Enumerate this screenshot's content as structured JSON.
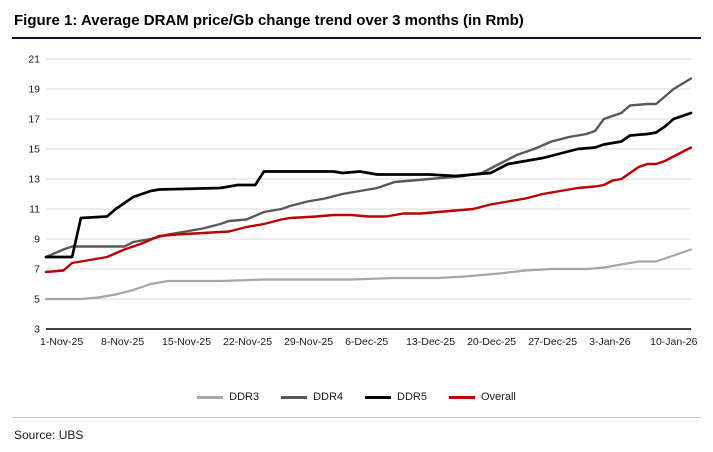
{
  "figure": {
    "title": "Figure 1: Average DRAM price/Gb change trend over 3 months (in Rmb)",
    "source": "Source: UBS"
  },
  "chart_data": {
    "type": "line",
    "title": "Average DRAM price/Gb change trend over 3 months (in Rmb)",
    "xlabel": "",
    "ylabel": "",
    "x_unit": "days since 1-Nov-25",
    "x_range": [
      0,
      74
    ],
    "x_tick_days": [
      0,
      7,
      14,
      21,
      28,
      35,
      42,
      49,
      56,
      63,
      70
    ],
    "x_tick_labels": [
      "1-Nov-25",
      "8-Nov-25",
      "15-Nov-25",
      "22-Nov-25",
      "29-Nov-25",
      "6-Dec-25",
      "13-Dec-25",
      "20-Dec-25",
      "27-Dec-25",
      "3-Jan-26",
      "10-Jan-26"
    ],
    "ylim": [
      3,
      21
    ],
    "y_ticks": [
      3,
      5,
      7,
      9,
      11,
      13,
      15,
      17,
      19,
      21
    ],
    "grid": "horizontal",
    "legend_position": "bottom-center",
    "series": [
      {
        "name": "DDR3",
        "color": "#a6a6a6",
        "points": [
          [
            0,
            5.0
          ],
          [
            4,
            5.0
          ],
          [
            6,
            5.1
          ],
          [
            8,
            5.3
          ],
          [
            10,
            5.6
          ],
          [
            12,
            6.0
          ],
          [
            14,
            6.2
          ],
          [
            20,
            6.2
          ],
          [
            25,
            6.3
          ],
          [
            30,
            6.3
          ],
          [
            35,
            6.3
          ],
          [
            40,
            6.4
          ],
          [
            45,
            6.4
          ],
          [
            48,
            6.5
          ],
          [
            52,
            6.7
          ],
          [
            55,
            6.9
          ],
          [
            58,
            7.0
          ],
          [
            62,
            7.0
          ],
          [
            64,
            7.1
          ],
          [
            66,
            7.3
          ],
          [
            68,
            7.5
          ],
          [
            70,
            7.5
          ],
          [
            72,
            7.9
          ],
          [
            74,
            8.3
          ]
        ]
      },
      {
        "name": "DDR4",
        "color": "#595959",
        "points": [
          [
            0,
            7.8
          ],
          [
            2,
            8.3
          ],
          [
            3,
            8.5
          ],
          [
            9,
            8.5
          ],
          [
            10,
            8.8
          ],
          [
            12,
            9.0
          ],
          [
            14,
            9.3
          ],
          [
            16,
            9.5
          ],
          [
            18,
            9.7
          ],
          [
            20,
            10.0
          ],
          [
            21,
            10.2
          ],
          [
            23,
            10.3
          ],
          [
            25,
            10.8
          ],
          [
            27,
            11.0
          ],
          [
            28,
            11.2
          ],
          [
            30,
            11.5
          ],
          [
            32,
            11.7
          ],
          [
            34,
            12.0
          ],
          [
            36,
            12.2
          ],
          [
            38,
            12.4
          ],
          [
            40,
            12.8
          ],
          [
            42,
            12.9
          ],
          [
            44,
            13.0
          ],
          [
            46,
            13.1
          ],
          [
            48,
            13.2
          ],
          [
            50,
            13.4
          ],
          [
            52,
            14.0
          ],
          [
            54,
            14.6
          ],
          [
            56,
            15.0
          ],
          [
            58,
            15.5
          ],
          [
            60,
            15.8
          ],
          [
            62,
            16.0
          ],
          [
            63,
            16.2
          ],
          [
            64,
            17.0
          ],
          [
            66,
            17.4
          ],
          [
            67,
            17.9
          ],
          [
            69,
            18.0
          ],
          [
            70,
            18.0
          ],
          [
            71,
            18.5
          ],
          [
            72,
            19.0
          ],
          [
            74,
            19.7
          ]
        ]
      },
      {
        "name": "DDR5",
        "color": "#000000",
        "points": [
          [
            0,
            7.8
          ],
          [
            3,
            7.8
          ],
          [
            4,
            10.4
          ],
          [
            7,
            10.5
          ],
          [
            8,
            11.0
          ],
          [
            10,
            11.8
          ],
          [
            12,
            12.2
          ],
          [
            13,
            12.3
          ],
          [
            20,
            12.4
          ],
          [
            22,
            12.6
          ],
          [
            24,
            12.6
          ],
          [
            25,
            13.5
          ],
          [
            33,
            13.5
          ],
          [
            34,
            13.4
          ],
          [
            36,
            13.5
          ],
          [
            38,
            13.3
          ],
          [
            44,
            13.3
          ],
          [
            47,
            13.2
          ],
          [
            49,
            13.3
          ],
          [
            51,
            13.4
          ],
          [
            53,
            14.0
          ],
          [
            55,
            14.2
          ],
          [
            57,
            14.4
          ],
          [
            59,
            14.7
          ],
          [
            61,
            15.0
          ],
          [
            63,
            15.1
          ],
          [
            64,
            15.3
          ],
          [
            66,
            15.5
          ],
          [
            67,
            15.9
          ],
          [
            69,
            16.0
          ],
          [
            70,
            16.1
          ],
          [
            71,
            16.5
          ],
          [
            72,
            17.0
          ],
          [
            74,
            17.4
          ]
        ]
      },
      {
        "name": "Overall",
        "color": "#c00000",
        "points": [
          [
            0,
            6.8
          ],
          [
            2,
            6.9
          ],
          [
            3,
            7.4
          ],
          [
            4,
            7.5
          ],
          [
            7,
            7.8
          ],
          [
            9,
            8.3
          ],
          [
            11,
            8.7
          ],
          [
            13,
            9.2
          ],
          [
            15,
            9.3
          ],
          [
            18,
            9.4
          ],
          [
            21,
            9.5
          ],
          [
            23,
            9.8
          ],
          [
            25,
            10.0
          ],
          [
            27,
            10.3
          ],
          [
            28,
            10.4
          ],
          [
            31,
            10.5
          ],
          [
            33,
            10.6
          ],
          [
            35,
            10.6
          ],
          [
            37,
            10.5
          ],
          [
            39,
            10.5
          ],
          [
            41,
            10.7
          ],
          [
            43,
            10.7
          ],
          [
            45,
            10.8
          ],
          [
            47,
            10.9
          ],
          [
            49,
            11.0
          ],
          [
            51,
            11.3
          ],
          [
            53,
            11.5
          ],
          [
            55,
            11.7
          ],
          [
            57,
            12.0
          ],
          [
            59,
            12.2
          ],
          [
            61,
            12.4
          ],
          [
            63,
            12.5
          ],
          [
            64,
            12.6
          ],
          [
            65,
            12.9
          ],
          [
            66,
            13.0
          ],
          [
            67,
            13.4
          ],
          [
            68,
            13.8
          ],
          [
            69,
            14.0
          ],
          [
            70,
            14.0
          ],
          [
            71,
            14.2
          ],
          [
            72,
            14.5
          ],
          [
            74,
            15.1
          ]
        ]
      }
    ]
  }
}
